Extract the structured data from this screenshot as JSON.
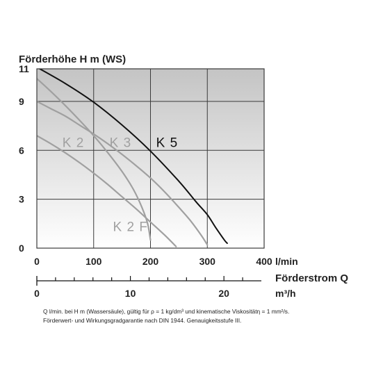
{
  "chart_data": {
    "type": "line",
    "ylabel": "Förderhöhe H m (WS)",
    "xlabel_top_unit": "l/min",
    "xlabel": "Förderstrom Q",
    "xlabel_bottom_unit": "m³/h",
    "y_ticks": [
      "0",
      "3",
      "6",
      "9",
      "11"
    ],
    "y_tick_values": [
      0,
      3,
      6,
      9,
      11
    ],
    "ylim": [
      0,
      11
    ],
    "x_ticks_top": [
      "0",
      "100",
      "200",
      "300",
      "400"
    ],
    "x_tick_values_top": [
      0,
      100,
      200,
      300,
      400
    ],
    "xlim_top": [
      0,
      400
    ],
    "x_ticks_bottom": [
      "0",
      "10",
      "20"
    ],
    "x_tick_values_bottom": [
      0,
      10,
      20
    ],
    "xlim_bottom": [
      0,
      24
    ],
    "grid": true,
    "series": [
      {
        "name": "K 2",
        "color": "#a0a0a0",
        "x": [
          0,
          25,
          50,
          75,
          100,
          125,
          150,
          175,
          200,
          225,
          245
        ],
        "y": [
          6.9,
          6.4,
          5.85,
          5.25,
          4.6,
          3.9,
          3.15,
          2.4,
          1.6,
          0.8,
          0.1
        ]
      },
      {
        "name": "K 3",
        "color": "#a0a0a0",
        "x": [
          0,
          25,
          50,
          75,
          100,
          125,
          150,
          175,
          200,
          225,
          250,
          270,
          290,
          300
        ],
        "y": [
          9.0,
          8.55,
          8.1,
          7.55,
          7.0,
          6.4,
          5.75,
          5.05,
          4.3,
          3.45,
          2.5,
          1.7,
          0.75,
          0.2
        ]
      },
      {
        "name": "K 2 F",
        "color": "#a0a0a0",
        "x": [
          0,
          25,
          50,
          75,
          100,
          125,
          150,
          170,
          185,
          195,
          200
        ],
        "y": [
          10.4,
          9.6,
          8.75,
          7.85,
          6.9,
          5.85,
          4.7,
          3.6,
          2.5,
          1.5,
          0.5
        ]
      },
      {
        "name": "K 5",
        "color": "#111111",
        "x": [
          0,
          50,
          100,
          150,
          200,
          250,
          280,
          300,
          315,
          330,
          335
        ],
        "y": [
          11.1,
          10.1,
          8.95,
          7.55,
          5.95,
          4.1,
          2.85,
          2.05,
          1.25,
          0.5,
          0.3
        ]
      }
    ],
    "labels": [
      {
        "text": "K 2",
        "x": 45,
        "y": 6.5,
        "color": "#a0a0a0"
      },
      {
        "text": "K 3",
        "x": 128,
        "y": 6.5,
        "color": "#a0a0a0"
      },
      {
        "text": "K 5",
        "x": 210,
        "y": 6.5,
        "color": "#111111"
      },
      {
        "text": "K 2 F",
        "x": 134,
        "y": 1.35,
        "color": "#a0a0a0"
      }
    ],
    "notes": [
      "Q l/min. bei H m (Wassersäule), gültig für ρ = 1 kg/dm³ und kinematische Viskositätη = 1 mm²/s.",
      "Förderwert- und Wirkungsgradgarantie nach DIN 1944. Genauigkeitsstufe III."
    ],
    "colors": {
      "plot_bg_top": "#c4c4c4",
      "plot_bg_bottom": "#ffffff",
      "grid": "#3a3a3a",
      "axis": "#111111"
    }
  }
}
